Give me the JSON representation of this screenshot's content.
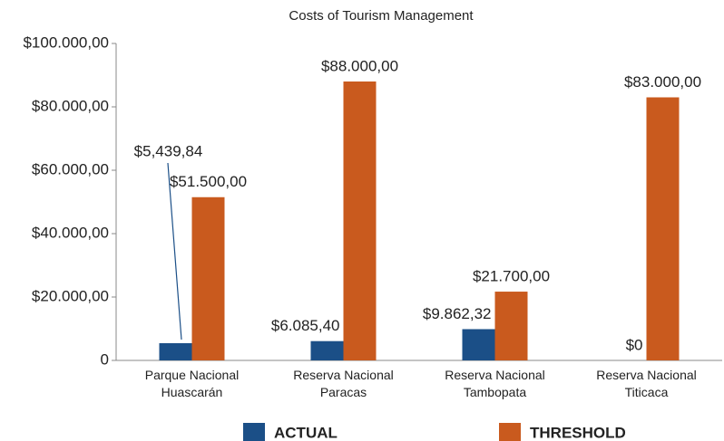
{
  "chart_data": {
    "type": "bar",
    "title": "Costs of Tourism Management",
    "categories": [
      "Parque Nacional\nHuascarán",
      "Reserva Nacional\nParacas",
      "Reserva Nacional\nTambopata",
      "Reserva Nacional\nTiticaca"
    ],
    "series": [
      {
        "name": "ACTUAL",
        "color": "#1b4f87",
        "values": [
          5439.84,
          6085.4,
          9862.32,
          0
        ],
        "value_labels": [
          "$5,439,84",
          "$6.085,40",
          "$9.862,32",
          "$0"
        ]
      },
      {
        "name": "THRESHOLD",
        "color": "#c95a1e",
        "values": [
          51500,
          88000,
          21700,
          83000
        ],
        "value_labels": [
          "$51.500,00",
          "$88.000,00",
          "$21.700,00",
          "$83.000,00"
        ]
      }
    ],
    "ylim": [
      0,
      100000
    ],
    "yticks": [
      0,
      {
        "value": 20000,
        "label": "$20.000,00"
      },
      {
        "value": 40000,
        "label": "$40.000,00"
      },
      {
        "value": 60000,
        "label": "$60.000,00"
      },
      {
        "value": 80000,
        "label": "$80.000,00"
      },
      {
        "value": 100000,
        "label": "$100.000,00"
      }
    ],
    "grid": false,
    "legend": "bottom"
  }
}
